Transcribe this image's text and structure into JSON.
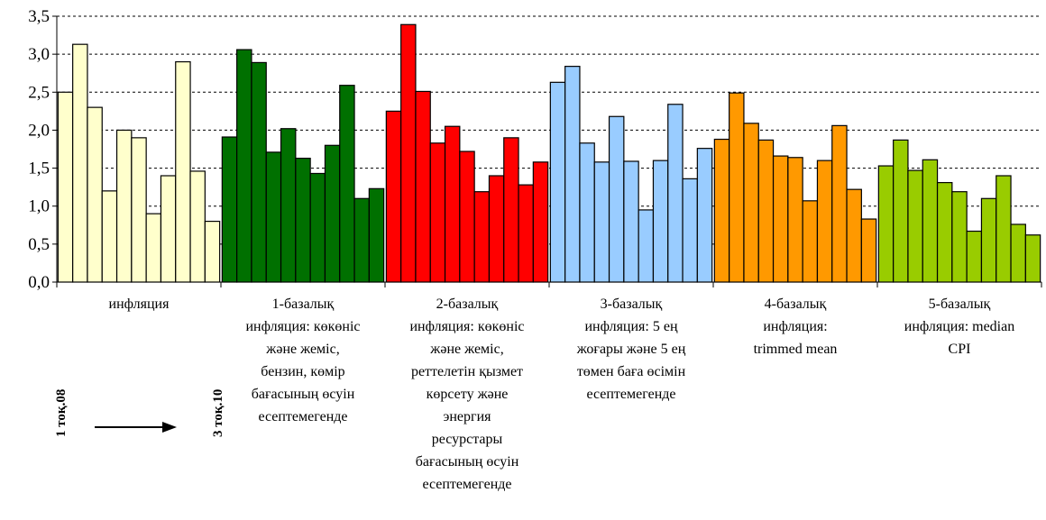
{
  "chart_data": {
    "type": "bar",
    "ylim": [
      0,
      3.5
    ],
    "yticks": [
      "0,0",
      "0,5",
      "1,0",
      "1,5",
      "2,0",
      "2,5",
      "3,0",
      "3,5"
    ],
    "grid": true,
    "groups": [
      {
        "label_lines": [
          "инфляция"
        ],
        "color": "#ffffcc",
        "values": [
          2.5,
          3.13,
          2.3,
          1.2,
          2.0,
          1.9,
          0.9,
          1.4,
          2.9,
          1.46,
          0.8
        ]
      },
      {
        "label_lines": [
          "1-базалық",
          "инфляция: көкөніс",
          "және жеміс,",
          "бензин, көмір",
          "бағасының өсуін",
          "есептемегенде"
        ],
        "color": "#007000",
        "values": [
          1.91,
          3.06,
          2.89,
          1.71,
          2.02,
          1.63,
          1.43,
          1.8,
          2.59,
          1.1,
          1.23
        ]
      },
      {
        "label_lines": [
          "2-базалық",
          "инфляция: көкөніс",
          "және жеміс,",
          "реттелетін қызмет",
          "көрсету және",
          "энергия",
          "ресурстары",
          "бағасының өсуін",
          "есептемегенде"
        ],
        "color": "#ff0000",
        "values": [
          2.25,
          3.39,
          2.51,
          1.83,
          2.05,
          1.72,
          1.19,
          1.4,
          1.9,
          1.28,
          1.58
        ]
      },
      {
        "label_lines": [
          "3-базалық",
          "инфляция:  5 ең",
          "жоғары және 5 ең",
          "төмен баға өсімін",
          "есептемегенде"
        ],
        "color": "#99ccff",
        "values": [
          2.63,
          2.84,
          1.83,
          1.58,
          2.18,
          1.59,
          0.95,
          1.6,
          2.34,
          1.36,
          1.76
        ]
      },
      {
        "label_lines": [
          "4-базалық",
          "инфляция:",
          "trimmed mean"
        ],
        "color": "#ff9900",
        "values": [
          1.88,
          2.49,
          2.09,
          1.87,
          1.66,
          1.64,
          1.07,
          1.6,
          2.06,
          1.22,
          0.83
        ]
      },
      {
        "label_lines": [
          "5-базалық",
          "инфляция:   median",
          "CPI"
        ],
        "color": "#99cc00",
        "values": [
          1.53,
          1.87,
          1.47,
          1.61,
          1.31,
          1.19,
          0.67,
          1.1,
          1.4,
          0.76,
          0.62
        ]
      }
    ],
    "side_note": {
      "start": "1 тоқ.08",
      "end": "3 тоқ.10"
    }
  }
}
